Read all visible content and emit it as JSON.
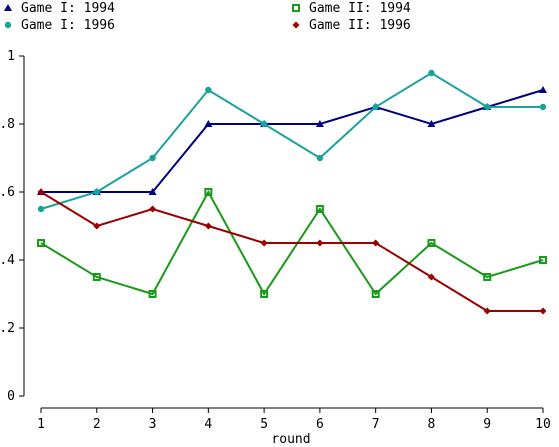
{
  "chart_data": {
    "type": "line",
    "xlabel": "round",
    "ylabel": "",
    "x": [
      1,
      2,
      3,
      4,
      5,
      6,
      7,
      8,
      9,
      10
    ],
    "xlim": [
      1,
      10
    ],
    "ylim": [
      0,
      1
    ],
    "yticks": [
      0,
      0.2,
      0.4,
      0.6,
      0.8,
      1
    ],
    "ytick_labels": [
      "0",
      ".2",
      ".4",
      ".6",
      ".8",
      "1"
    ],
    "xtick_labels": [
      "1",
      "2",
      "3",
      "4",
      "5",
      "6",
      "7",
      "8",
      "9",
      "10"
    ],
    "grid": false,
    "legend_position": "top",
    "series": [
      {
        "name": "Game I: 1994",
        "color": "#000080",
        "marker": "triangle",
        "values": [
          0.6,
          0.6,
          0.6,
          0.8,
          0.8,
          0.8,
          0.85,
          0.8,
          0.85,
          0.9
        ]
      },
      {
        "name": "Game I: 1996",
        "color": "#1aa39a",
        "marker": "circle",
        "values": [
          0.55,
          0.6,
          0.7,
          0.9,
          0.8,
          0.7,
          0.85,
          0.95,
          0.85,
          0.85
        ]
      },
      {
        "name": "Game II: 1994",
        "color": "#1a9a1a",
        "marker": "square",
        "values": [
          0.45,
          0.35,
          0.3,
          0.6,
          0.3,
          0.55,
          0.3,
          0.45,
          0.35,
          0.4
        ]
      },
      {
        "name": "Game II: 1996",
        "color": "#9a0000",
        "marker": "diamond",
        "values": [
          0.6,
          0.5,
          0.55,
          0.5,
          0.45,
          0.45,
          0.45,
          0.35,
          0.25,
          0.25
        ]
      }
    ]
  }
}
